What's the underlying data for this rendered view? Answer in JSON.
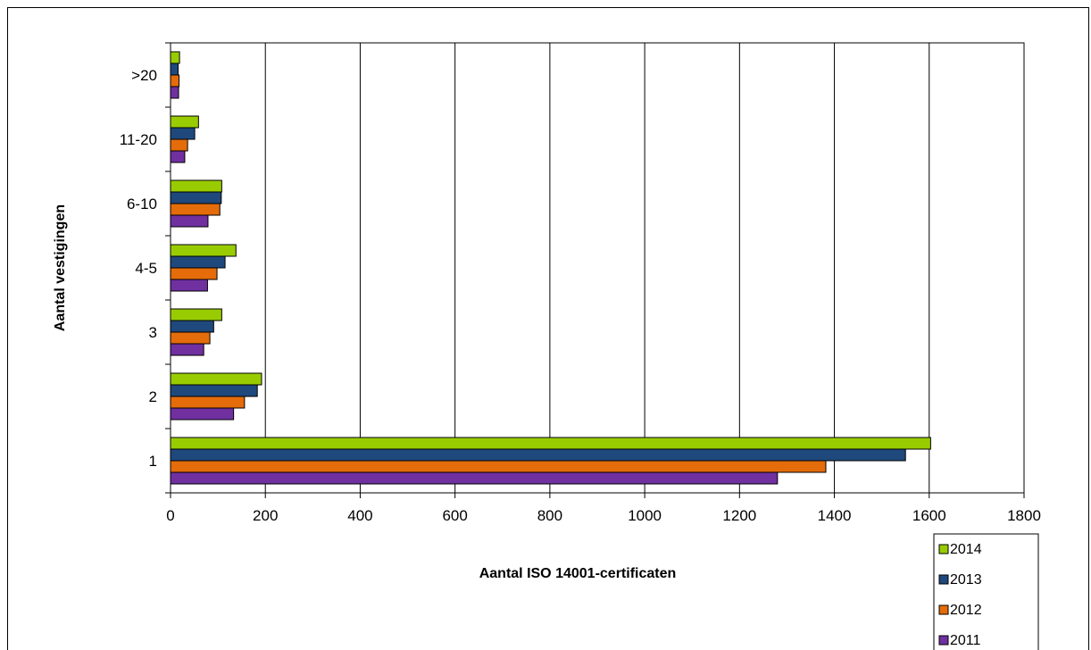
{
  "chart_data": {
    "type": "bar",
    "orientation": "horizontal",
    "categories": [
      "1",
      "2",
      "3",
      "4-5",
      "6-10",
      "11-20",
      ">20"
    ],
    "series": [
      {
        "name": "2014",
        "color": "#99cc00",
        "values": [
          1603,
          192,
          108,
          138,
          108,
          59,
          19
        ]
      },
      {
        "name": "2013",
        "color": "#1f497d",
        "values": [
          1550,
          183,
          91,
          115,
          107,
          51,
          16
        ]
      },
      {
        "name": "2012",
        "color": "#e46c0a",
        "values": [
          1382,
          156,
          83,
          98,
          104,
          36,
          18
        ]
      },
      {
        "name": "2011",
        "color": "#7030a0",
        "values": [
          1280,
          133,
          70,
          78,
          79,
          30,
          17
        ]
      }
    ],
    "xlim": [
      0,
      1800
    ],
    "xticks": [
      "0",
      "200",
      "400",
      "600",
      "800",
      "1000",
      "1200",
      "1400",
      "1600",
      "1800"
    ],
    "xlabel": "Aantal ISO 14001-certificaten",
    "ylabel": "Aantal vestigingen",
    "grid": "vertical",
    "legend_position": "bottom-right"
  }
}
